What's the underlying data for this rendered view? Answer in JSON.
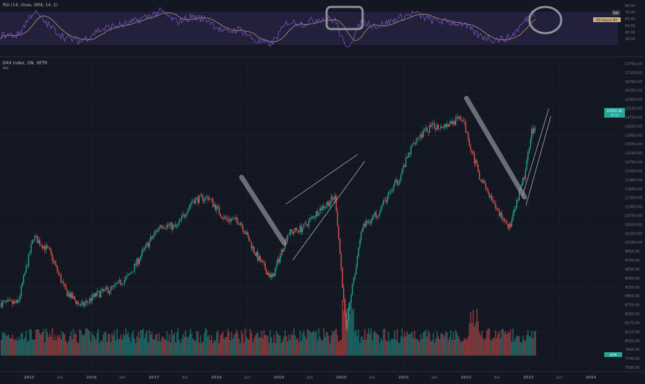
{
  "rsi_panel": {
    "title": "RSI (14, close, SMA, 14, 2)",
    "series_name": "RSI",
    "sma_name": "RSI-based MA",
    "axis_ticks": [
      "80.00",
      "70.00",
      "60.00",
      "50.00",
      "40.00",
      "30.00"
    ]
  },
  "price_panel": {
    "title": "DAX Index, 1W, XETR",
    "subtitle": "Vol",
    "last_price": "15502.42",
    "last_price_sub": "15 22",
    "volume_badge": "87M",
    "axis_ticks": [
      "17750.00",
      "17250.00",
      "16750.00",
      "16350.00",
      "15950.00",
      "15150.00",
      "14750.00",
      "14350.00",
      "13950.00",
      "13550.00",
      "13150.00",
      "12750.00",
      "12350.00",
      "11950.00",
      "11650.00",
      "11350.00",
      "11050.00",
      "10750.00",
      "10550.00",
      "10350.00",
      "10150.00",
      "9950.00",
      "9750.00",
      "9550.00",
      "9350.00",
      "9150.00",
      "8950.00",
      "8750.00",
      "8550.00",
      "8375.00",
      "8215.00",
      "8055.00",
      "7895.00",
      "7745.00",
      "7595.00"
    ]
  },
  "time_axis": [
    "2015",
    "Jun",
    "2016",
    "Jun",
    "2017",
    "Jun",
    "2018",
    "Jun",
    "2019",
    "Jun",
    "2020",
    "Jun",
    "2021",
    "Jun",
    "2022",
    "Jun",
    "2023",
    "Jun",
    "2024"
  ],
  "colors": {
    "background": "#131722",
    "up": "#26a69a",
    "down": "#ef5350",
    "rsi_line": "#7e57c2",
    "rsi_ma": "#c9b27a",
    "rsi_band": "#2a2445",
    "drawing": "#8f939c",
    "last_price_bg": "#26a69a"
  },
  "chart_data": {
    "type": "line",
    "title": "DAX Index, 1W, XETR",
    "x": [
      "2015-01",
      "2015-04",
      "2015-07",
      "2015-10",
      "2016-01",
      "2016-04",
      "2016-07",
      "2016-10",
      "2017-01",
      "2017-04",
      "2017-07",
      "2017-10",
      "2018-01",
      "2018-04",
      "2018-07",
      "2018-10",
      "2019-01",
      "2019-04",
      "2019-07",
      "2019-10",
      "2020-01",
      "2020-03",
      "2020-06",
      "2020-09",
      "2021-01",
      "2021-04",
      "2021-07",
      "2021-10",
      "2022-01",
      "2022-04",
      "2022-07",
      "2022-10",
      "2023-01",
      "2023-02"
    ],
    "series": [
      {
        "values": [
          9800,
          12000,
          11500,
          10200,
          9700,
          10100,
          10300,
          10700,
          11600,
          12400,
          12300,
          13200,
          13300,
          12600,
          12500,
          11400,
          10600,
          12100,
          12300,
          12900,
          13300,
          9000,
          12300,
          12800,
          13900,
          15200,
          15600,
          15700,
          15900,
          14100,
          13000,
          12300,
          14200,
          15500
        ]
      },
      {
        "values": [
          45,
          72,
          55,
          42,
          38,
          50,
          55,
          58,
          65,
          72,
          60,
          66,
          62,
          48,
          52,
          38,
          35,
          60,
          58,
          64,
          62,
          28,
          60,
          55,
          64,
          70,
          62,
          60,
          58,
          45,
          40,
          42,
          62,
          70
        ]
      }
    ],
    "ylim": [
      7595,
      17750
    ],
    "rsi_ylim": [
      30,
      80
    ]
  }
}
